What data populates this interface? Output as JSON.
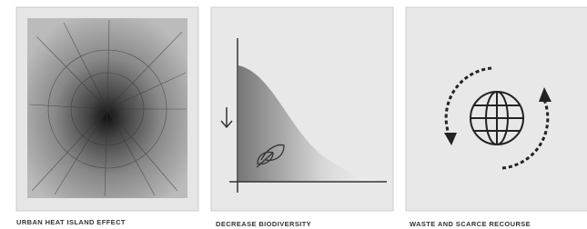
{
  "panels": [
    {
      "caption": "URBAN HEAT ISLAND EFFECT"
    },
    {
      "caption": "DECREASE BIODIVERSITY"
    },
    {
      "caption": "WASTE AND SCARCE RECOURSE"
    }
  ]
}
